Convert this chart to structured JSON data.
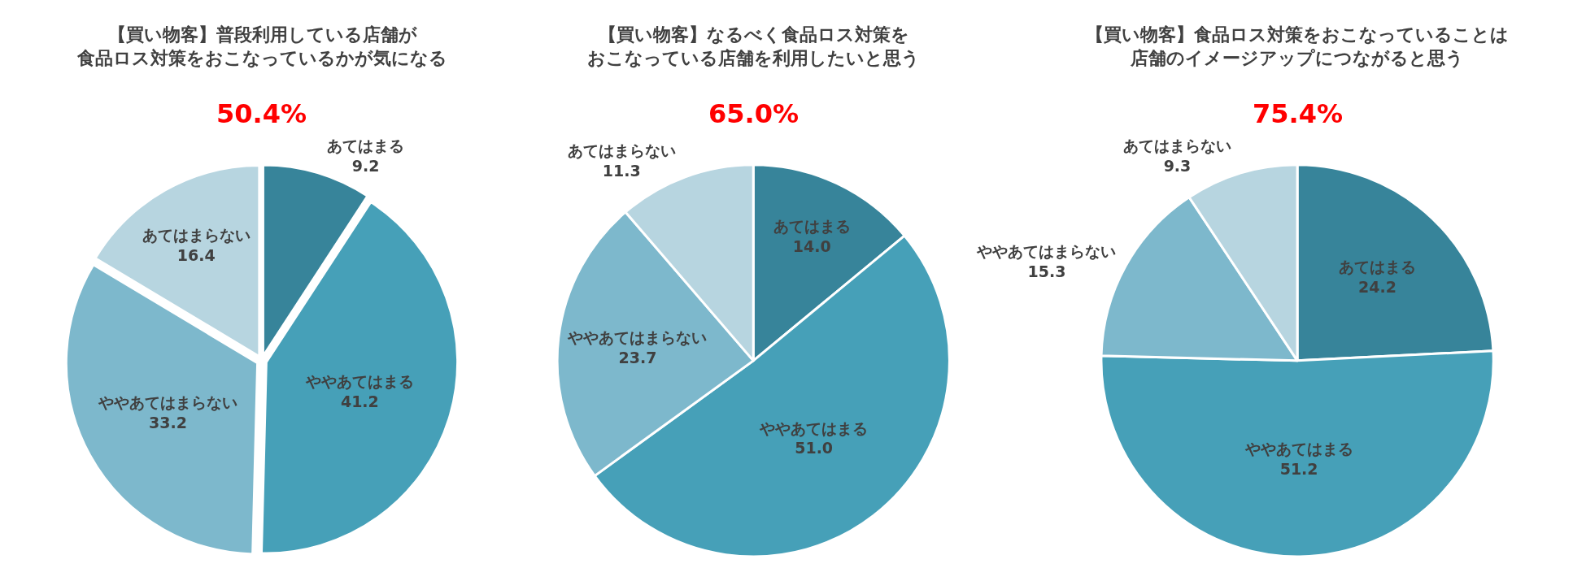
{
  "chart_data": [
    {
      "type": "pie",
      "title": "【買い物客】普段利用している店舗が食品ロス対策をおこなっているかが気になる",
      "subtitle": "50.4%",
      "categories": [
        "あてはまる",
        "ややあてはまる",
        "ややあてはまらない",
        "あてはまらない"
      ],
      "values": [
        9.2,
        41.2,
        33.2,
        16.4
      ],
      "colors": [
        "#37849a",
        "#46a0b8",
        "#7db8cc",
        "#b7d5e0"
      ],
      "data_labels": true
    },
    {
      "type": "pie",
      "title": "【買い物客】なるべく食品ロス対策をおこなっている店舗を利用したいと思う",
      "subtitle": "65.0%",
      "categories": [
        "あてはまる",
        "ややあてはまる",
        "ややあてはまらない",
        "あてはまらない"
      ],
      "values": [
        14.0,
        51.0,
        23.7,
        11.3
      ],
      "value_labels": [
        "14.0",
        "51.0",
        "23.7",
        "11.3"
      ],
      "colors": [
        "#37849a",
        "#46a0b8",
        "#7db8cc",
        "#b7d5e0"
      ]
    },
    {
      "type": "pie",
      "title": "【買い物客】食品ロス対策をおこなっていることは店舗のイメージアップにつながると思う",
      "subtitle": "75.4%",
      "categories": [
        "あてはまる",
        "ややあてはまる",
        "ややあてはまらない",
        "あてはまらない"
      ],
      "values": [
        24.2,
        51.2,
        15.3,
        9.3
      ],
      "colors": [
        "#37849a",
        "#46a0b8",
        "#7db8cc",
        "#b7d5e0"
      ],
      "data_labels": true
    }
  ]
}
